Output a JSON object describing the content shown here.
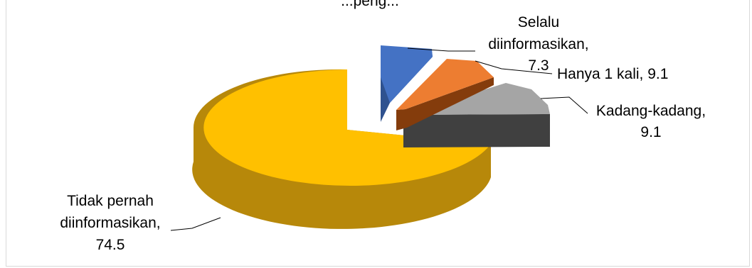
{
  "chart_data": {
    "type": "pie",
    "title": "...peng...",
    "slices": [
      {
        "label": "Selalu diinformasikan",
        "value": 7.3,
        "color": "#4472c4",
        "lines": [
          "Selalu",
          "diinformasikan,",
          "7.3"
        ]
      },
      {
        "label": "Hanya 1 kali",
        "value": 9.1,
        "color": "#ed7d31",
        "lines": [
          "Hanya 1 kali, 9.1"
        ]
      },
      {
        "label": "Kadang-kadang",
        "value": 9.1,
        "color": "#a5a5a5",
        "lines": [
          "Kadang-kadang,",
          "9.1"
        ]
      },
      {
        "label": "Tidak pernah diinformasikan",
        "value": 74.5,
        "color": "#ffc000",
        "lines": [
          "Tidak pernah",
          "diinformasikan,",
          "74.5"
        ]
      }
    ],
    "legend": "none",
    "style": "3d-exploded"
  }
}
